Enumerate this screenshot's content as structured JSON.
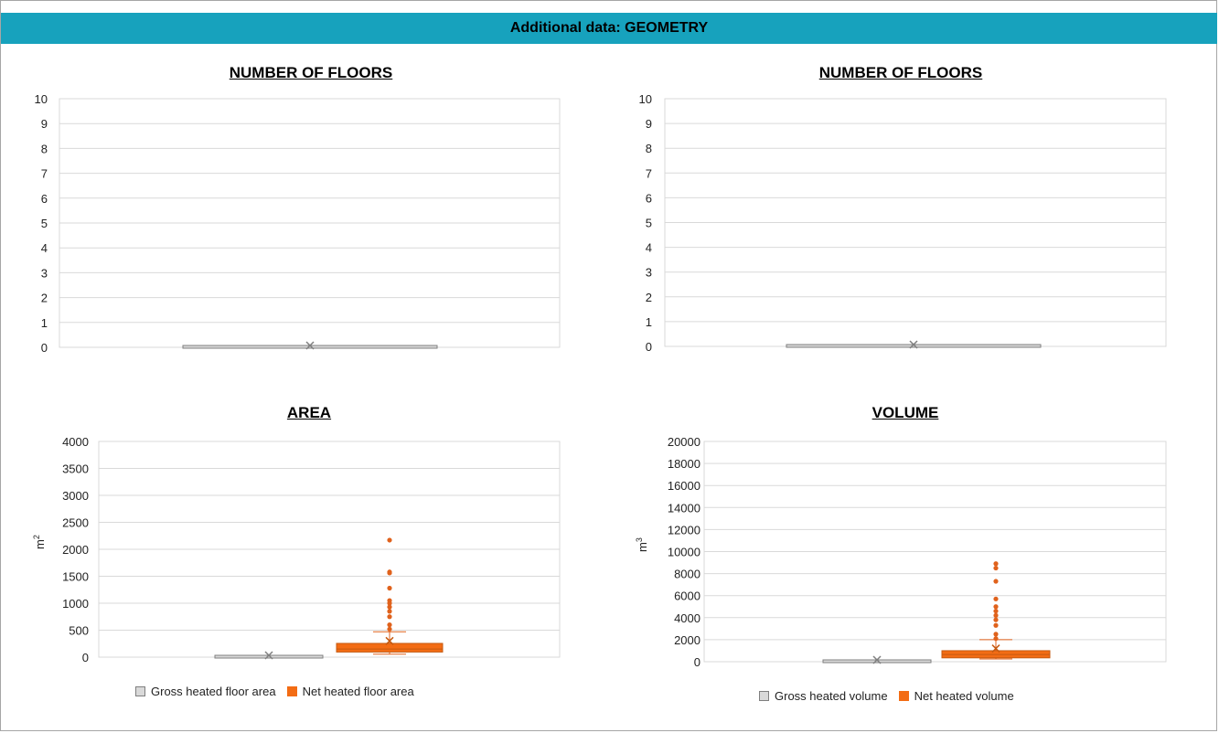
{
  "header": {
    "title": "Additional data: GEOMETRY"
  },
  "colors": {
    "header_bg": "#17a2bd",
    "series_gross": "#d9d9d9",
    "series_net": "#f36c14",
    "outlier": "#e0621c"
  },
  "chart_data": [
    {
      "type": "box",
      "title": "NUMBER OF FLOORS",
      "ylim": [
        0,
        10
      ],
      "yticks": [
        "0",
        "1",
        "2",
        "3",
        "4",
        "5",
        "6",
        "7",
        "8",
        "9",
        "10"
      ],
      "series": [
        {
          "color": "#d9d9d9",
          "min": 0,
          "q1": 0,
          "median": 0,
          "q3": 0,
          "max": 0,
          "mean": 0,
          "outliers": []
        }
      ]
    },
    {
      "type": "box",
      "title": "NUMBER OF FLOORS",
      "ylim": [
        0,
        10
      ],
      "yticks": [
        "0",
        "1",
        "2",
        "3",
        "4",
        "5",
        "6",
        "7",
        "8",
        "9",
        "10"
      ],
      "series": [
        {
          "color": "#d9d9d9",
          "min": 0,
          "q1": 0,
          "median": 0,
          "q3": 0,
          "max": 0,
          "mean": 0,
          "outliers": []
        }
      ]
    },
    {
      "type": "box",
      "title": "AREA",
      "ylabel": "m",
      "ylabel_sup": "2",
      "ylim": [
        0,
        4000
      ],
      "yticks": [
        "0",
        "500",
        "1000",
        "1500",
        "2000",
        "2500",
        "3000",
        "3500",
        "4000"
      ],
      "series": [
        {
          "name": "Gross heated floor area",
          "color": "#d9d9d9",
          "min": 0,
          "q1": 0,
          "median": 0,
          "q3": 0,
          "max": 0,
          "mean": 0,
          "outliers": []
        },
        {
          "name": "Net heated floor area",
          "color": "#f36c14",
          "min": 55,
          "q1": 95,
          "median": 150,
          "q3": 255,
          "max": 470,
          "mean": 300,
          "outliers": [
            520,
            600,
            750,
            850,
            930,
            1000,
            1050,
            1280,
            1560,
            1580,
            2170
          ]
        }
      ]
    },
    {
      "type": "box",
      "title": "VOLUME",
      "ylabel": "m",
      "ylabel_sup": "3",
      "ylim": [
        0,
        20000
      ],
      "yticks": [
        "0",
        "2000",
        "4000",
        "6000",
        "8000",
        "10000",
        "12000",
        "14000",
        "16000",
        "18000",
        "20000"
      ],
      "series": [
        {
          "name": "Gross heated volume",
          "color": "#d9d9d9",
          "min": 0,
          "q1": 0,
          "median": 0,
          "q3": 0,
          "max": 0,
          "mean": 0,
          "outliers": []
        },
        {
          "name": "Net heated volume",
          "color": "#f36c14",
          "min": 250,
          "q1": 350,
          "median": 650,
          "q3": 1000,
          "max": 2000,
          "mean": 1200,
          "outliers": [
            2100,
            2500,
            3300,
            3800,
            4200,
            4600,
            5000,
            5700,
            7300,
            8500,
            8900
          ]
        }
      ]
    }
  ]
}
